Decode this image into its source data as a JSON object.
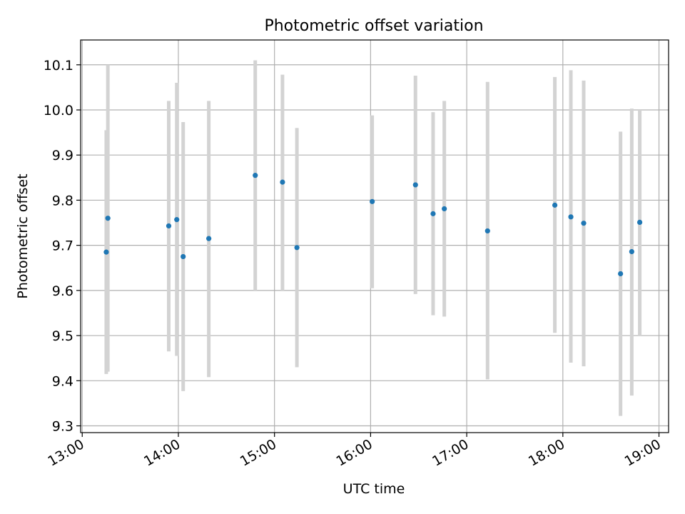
{
  "chart_data": {
    "type": "scatter",
    "title": "Photometric offset variation",
    "xlabel": "UTC time",
    "ylabel": "Photometric offset",
    "x_tick_labels": [
      "13:00",
      "14:00",
      "15:00",
      "16:00",
      "17:00",
      "18:00",
      "19:00"
    ],
    "y_tick_labels": [
      "9.3",
      "9.4",
      "9.5",
      "9.6",
      "9.7",
      "9.8",
      "9.9",
      "10.0",
      "10.1"
    ],
    "y_ticks": [
      9.3,
      9.4,
      9.5,
      9.6,
      9.7,
      9.8,
      9.9,
      10.0,
      10.1
    ],
    "xlim": [
      "12:59",
      "19:06"
    ],
    "ylim": [
      9.285,
      10.155
    ],
    "grid": true,
    "marker_color": "#1f77b4",
    "errorbar_color": "#d3d3d3",
    "points": [
      {
        "time": "13:15",
        "y": 9.685,
        "err_low": 9.415,
        "err_high": 9.955
      },
      {
        "time": "13:16",
        "y": 9.76,
        "err_low": 9.42,
        "err_high": 10.1
      },
      {
        "time": "13:54",
        "y": 9.743,
        "err_low": 9.465,
        "err_high": 10.02
      },
      {
        "time": "13:59",
        "y": 9.757,
        "err_low": 9.455,
        "err_high": 10.06
      },
      {
        "time": "14:03",
        "y": 9.675,
        "err_low": 9.377,
        "err_high": 9.973
      },
      {
        "time": "14:19",
        "y": 9.715,
        "err_low": 9.408,
        "err_high": 10.02
      },
      {
        "time": "14:48",
        "y": 9.855,
        "err_low": 9.6,
        "err_high": 10.11
      },
      {
        "time": "15:05",
        "y": 9.84,
        "err_low": 9.6,
        "err_high": 10.078
      },
      {
        "time": "15:14",
        "y": 9.695,
        "err_low": 9.43,
        "err_high": 9.96
      },
      {
        "time": "16:01",
        "y": 9.797,
        "err_low": 9.605,
        "err_high": 9.988
      },
      {
        "time": "16:28",
        "y": 9.834,
        "err_low": 9.592,
        "err_high": 10.076
      },
      {
        "time": "16:39",
        "y": 9.77,
        "err_low": 9.545,
        "err_high": 9.995
      },
      {
        "time": "16:46",
        "y": 9.781,
        "err_low": 9.542,
        "err_high": 10.02
      },
      {
        "time": "17:13",
        "y": 9.732,
        "err_low": 9.403,
        "err_high": 10.062
      },
      {
        "time": "17:55",
        "y": 9.789,
        "err_low": 9.506,
        "err_high": 10.073
      },
      {
        "time": "18:05",
        "y": 9.763,
        "err_low": 9.44,
        "err_high": 10.088
      },
      {
        "time": "18:13",
        "y": 9.749,
        "err_low": 9.432,
        "err_high": 10.065
      },
      {
        "time": "18:36",
        "y": 9.637,
        "err_low": 9.322,
        "err_high": 9.952
      },
      {
        "time": "18:43",
        "y": 9.686,
        "err_low": 9.367,
        "err_high": 10.003
      },
      {
        "time": "18:48",
        "y": 9.751,
        "err_low": 9.5,
        "err_high": 10.0
      }
    ]
  }
}
